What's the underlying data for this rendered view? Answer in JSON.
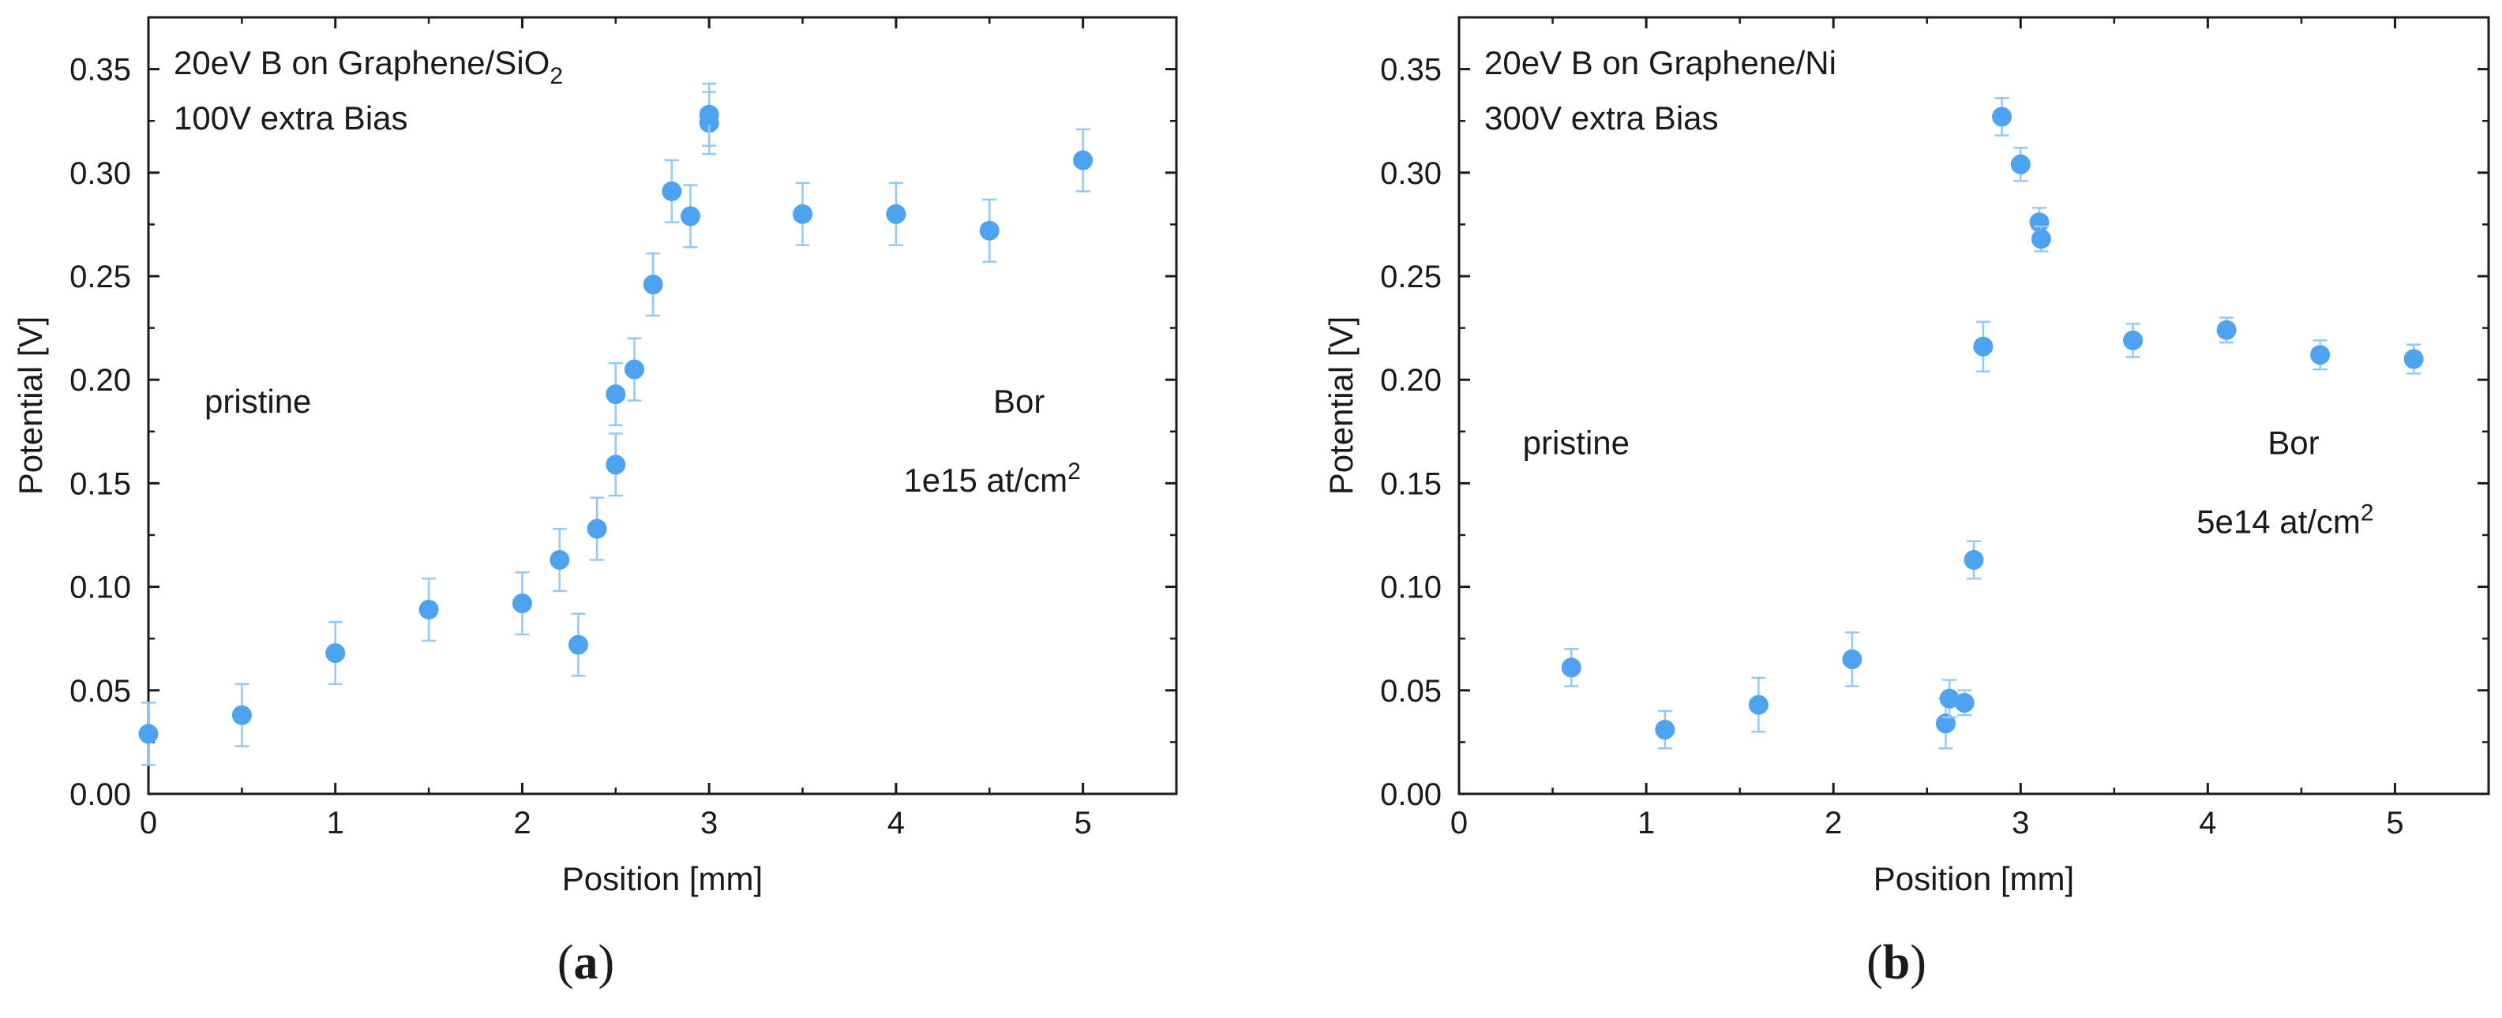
{
  "colors": {
    "marker": "#4da3f0",
    "errorbar": "#93c9f5",
    "axis": "#1a1a1a"
  },
  "chart_data": [
    {
      "id": "a",
      "type": "scatter",
      "caption": "a",
      "title_line1": "20eV B on Graphene/SiO",
      "title_line1_sub": "2",
      "title_line2": "100V extra Bias",
      "xlabel": "Position [mm]",
      "ylabel": "Potential [V]",
      "xlim": [
        0,
        5.5
      ],
      "ylim": [
        0,
        0.375
      ],
      "xticks": [
        0,
        1,
        2,
        3,
        4,
        5
      ],
      "xtick_labels": [
        "0",
        "1",
        "2",
        "3",
        "4",
        "5"
      ],
      "yticks": [
        0,
        0.05,
        0.1,
        0.15,
        0.2,
        0.25,
        0.3,
        0.35
      ],
      "ytick_labels": [
        "0.00",
        "0.05",
        "0.10",
        "0.15",
        "0.20",
        "0.25",
        "0.30",
        "0.35"
      ],
      "annotation_left": "pristine",
      "annotation_right_line1": "Bor",
      "annotation_right_line2": "1e15 at/cm",
      "annotation_right_sup": "2",
      "series": [
        {
          "name": "data",
          "x": [
            0,
            0.5,
            1,
            1.5,
            2,
            2.2,
            2.3,
            2.4,
            2.5,
            2.5,
            2.6,
            2.7,
            2.8,
            2.9,
            3.0,
            3.0,
            3.5,
            4.0,
            4.5,
            5.0
          ],
          "y": [
            0.029,
            0.038,
            0.068,
            0.089,
            0.092,
            0.113,
            0.072,
            0.128,
            0.159,
            0.193,
            0.205,
            0.246,
            0.291,
            0.279,
            0.324,
            0.328,
            0.28,
            0.28,
            0.272,
            0.306
          ],
          "err": [
            0.015,
            0.015,
            0.015,
            0.015,
            0.015,
            0.015,
            0.015,
            0.015,
            0.015,
            0.015,
            0.015,
            0.015,
            0.015,
            0.015,
            0.015,
            0.015,
            0.015,
            0.015,
            0.015,
            0.015
          ]
        }
      ]
    },
    {
      "id": "b",
      "type": "scatter",
      "caption": "b",
      "title_line1": "20eV B on Graphene/Ni",
      "title_line1_sub": "",
      "title_line2": "300V extra Bias",
      "xlabel": "Position [mm]",
      "ylabel": "Potential [V]",
      "xlim": [
        0,
        5.5
      ],
      "ylim": [
        0,
        0.375
      ],
      "xticks": [
        0,
        1,
        2,
        3,
        4,
        5
      ],
      "xtick_labels": [
        "0",
        "1",
        "2",
        "3",
        "4",
        "5"
      ],
      "yticks": [
        0,
        0.05,
        0.1,
        0.15,
        0.2,
        0.25,
        0.3,
        0.35
      ],
      "ytick_labels": [
        "0.00",
        "0.05",
        "0.10",
        "0.15",
        "0.20",
        "0.25",
        "0.30",
        "0.35"
      ],
      "annotation_left": "pristine",
      "annotation_right_line1": "Bor",
      "annotation_right_line2": "5e14 at/cm",
      "annotation_right_sup": "2",
      "series": [
        {
          "name": "data",
          "x": [
            0.6,
            1.1,
            1.6,
            2.1,
            2.6,
            2.62,
            2.7,
            2.75,
            2.8,
            2.9,
            3.0,
            3.1,
            3.11,
            3.6,
            4.1,
            4.6,
            5.1
          ],
          "y": [
            0.061,
            0.031,
            0.043,
            0.065,
            0.034,
            0.046,
            0.044,
            0.113,
            0.216,
            0.327,
            0.304,
            0.276,
            0.268,
            0.219,
            0.224,
            0.212,
            0.21
          ],
          "err": [
            0.009,
            0.009,
            0.013,
            0.013,
            0.012,
            0.009,
            0.006,
            0.009,
            0.012,
            0.009,
            0.008,
            0.007,
            0.006,
            0.008,
            0.006,
            0.007,
            0.007
          ]
        }
      ]
    }
  ]
}
